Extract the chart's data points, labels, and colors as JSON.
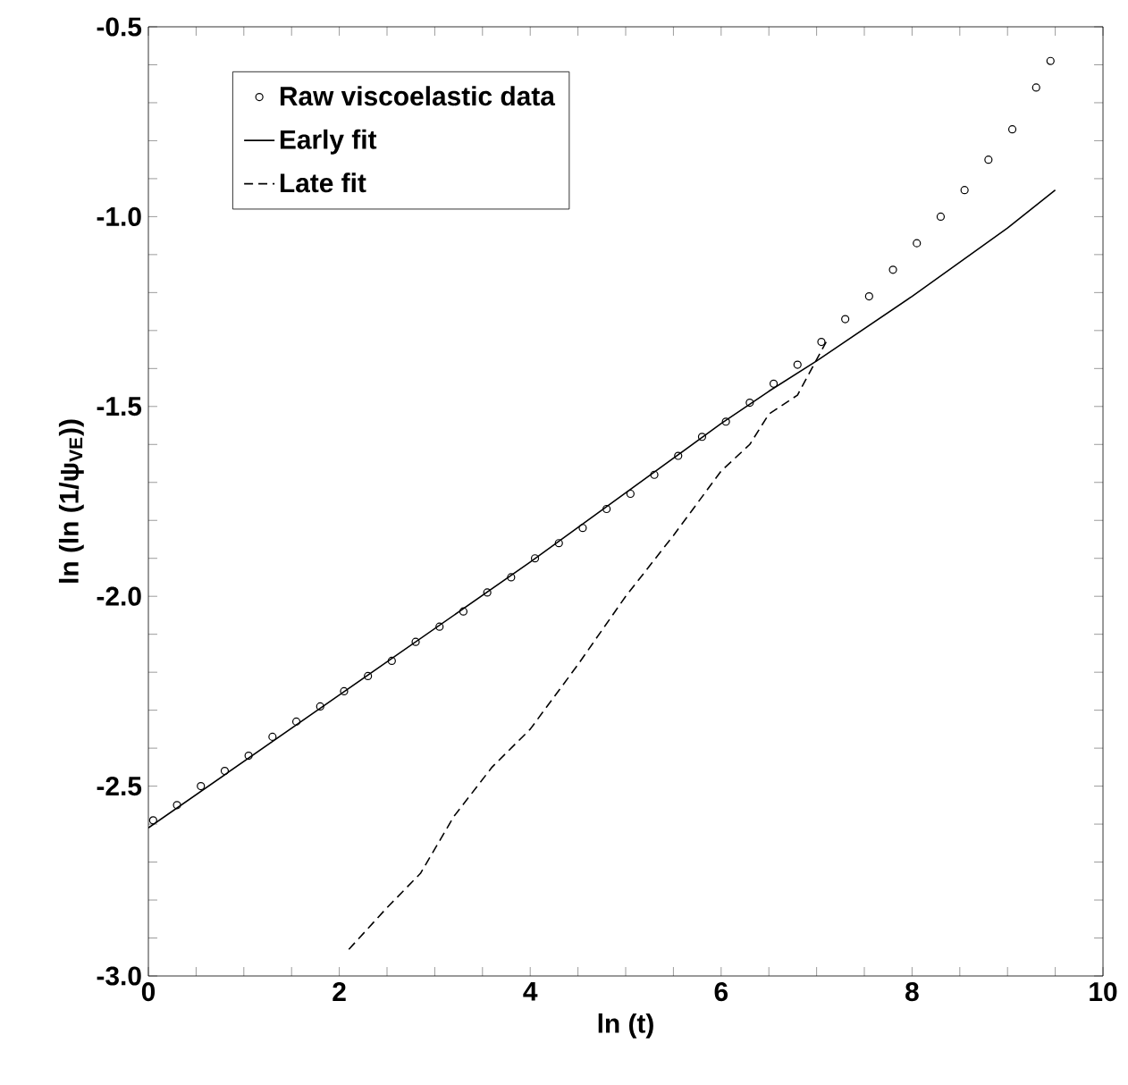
{
  "chart_data": {
    "type": "line",
    "xlabel": "ln (t)",
    "ylabel": "ln (ln (1/ψ$_{VE}$))",
    "xlim": [
      0,
      10
    ],
    "ylim": [
      -3.0,
      -0.5
    ],
    "xticks": [
      0,
      {
        "value": 0.5,
        "label": null
      },
      {
        "value": 1,
        "label": null
      },
      {
        "value": 1.5,
        "label": null
      },
      2,
      {
        "value": 2.5,
        "label": null
      },
      {
        "value": 3,
        "label": null
      },
      {
        "value": 3.5,
        "label": null
      },
      4,
      {
        "value": 4.5,
        "label": null
      },
      {
        "value": 5,
        "label": null
      },
      {
        "value": 5.5,
        "label": null
      },
      6,
      {
        "value": 6.5,
        "label": null
      },
      {
        "value": 7,
        "label": null
      },
      {
        "value": 7.5,
        "label": null
      },
      8,
      {
        "value": 8.5,
        "label": null
      },
      {
        "value": 9,
        "label": null
      },
      {
        "value": 9.5,
        "label": null
      },
      10
    ],
    "yticks": [
      {
        "value": -3.0,
        "label": "-3.0"
      },
      {
        "value": -2.9,
        "label": null
      },
      {
        "value": -2.8,
        "label": null
      },
      {
        "value": -2.7,
        "label": null
      },
      {
        "value": -2.6,
        "label": null
      },
      {
        "value": -2.5,
        "label": "-2.5"
      },
      {
        "value": -2.4,
        "label": null
      },
      {
        "value": -2.3,
        "label": null
      },
      {
        "value": -2.2,
        "label": null
      },
      {
        "value": -2.1,
        "label": null
      },
      {
        "value": -2.0,
        "label": "-2.0"
      },
      {
        "value": -1.9,
        "label": null
      },
      {
        "value": -1.8,
        "label": null
      },
      {
        "value": -1.7,
        "label": null
      },
      {
        "value": -1.6,
        "label": null
      },
      {
        "value": -1.5,
        "label": "-1.5"
      },
      {
        "value": -1.4,
        "label": null
      },
      {
        "value": -1.3,
        "label": null
      },
      {
        "value": -1.2,
        "label": null
      },
      {
        "value": -1.1,
        "label": null
      },
      {
        "value": -1.0,
        "label": "-1.0"
      },
      {
        "value": -0.9,
        "label": null
      },
      {
        "value": -0.8,
        "label": null
      },
      {
        "value": -0.7,
        "label": null
      },
      {
        "value": -0.6,
        "label": null
      },
      {
        "value": -0.5,
        "label": "-0.5"
      }
    ],
    "grid": false,
    "legend": "top left",
    "series": [
      {
        "name": "Raw viscoelastic data",
        "type": "scatter",
        "marker": "circle",
        "color": "#000000",
        "x": [
          0.05,
          0.3,
          0.55,
          0.8,
          1.05,
          1.3,
          1.55,
          1.8,
          2.05,
          2.3,
          2.55,
          2.8,
          3.05,
          3.3,
          3.55,
          3.8,
          4.05,
          4.3,
          4.55,
          4.8,
          5.05,
          5.3,
          5.55,
          5.8,
          6.05,
          6.3,
          6.55,
          6.8,
          7.05,
          7.3,
          7.55,
          7.8,
          8.05,
          8.3,
          8.55,
          8.8,
          9.05,
          9.3,
          9.45
        ],
        "values": [
          -2.59,
          -2.55,
          -2.5,
          -2.46,
          -2.42,
          -2.37,
          -2.33,
          -2.29,
          -2.25,
          -2.21,
          -2.17,
          -2.12,
          -2.08,
          -2.04,
          -1.99,
          -1.95,
          -1.9,
          -1.86,
          -1.82,
          -1.77,
          -1.73,
          -1.68,
          -1.63,
          -1.58,
          -1.54,
          -1.49,
          -1.44,
          -1.39,
          -1.33,
          -1.27,
          -1.21,
          -1.14,
          -1.07,
          -1.0,
          -0.93,
          -0.85,
          -0.77,
          -0.66,
          -0.59
        ]
      },
      {
        "name": "Early fit",
        "marker": "none",
        "line_style": "solid",
        "color": "#000000",
        "x": [
          0,
          2,
          4,
          6,
          6.5,
          7,
          8,
          9,
          9.5
        ],
        "values": [
          -2.61,
          -2.26,
          -1.91,
          -1.545,
          -1.46,
          -1.38,
          -1.21,
          -1.03,
          -0.93
        ]
      },
      {
        "name": "Late fit",
        "marker": "none",
        "line_style": "dashed",
        "color": "#000000",
        "x": [
          2.1,
          2.5,
          2.85,
          3.2,
          3.6,
          4,
          4.5,
          5,
          5.5,
          6,
          6.3,
          6.5,
          6.8,
          7.1
        ],
        "values": [
          -2.93,
          -2.82,
          -2.73,
          -2.58,
          -2.45,
          -2.35,
          -2.18,
          -2.0,
          -1.84,
          -1.67,
          -1.6,
          -1.52,
          -1.47,
          -1.33
        ]
      }
    ]
  }
}
